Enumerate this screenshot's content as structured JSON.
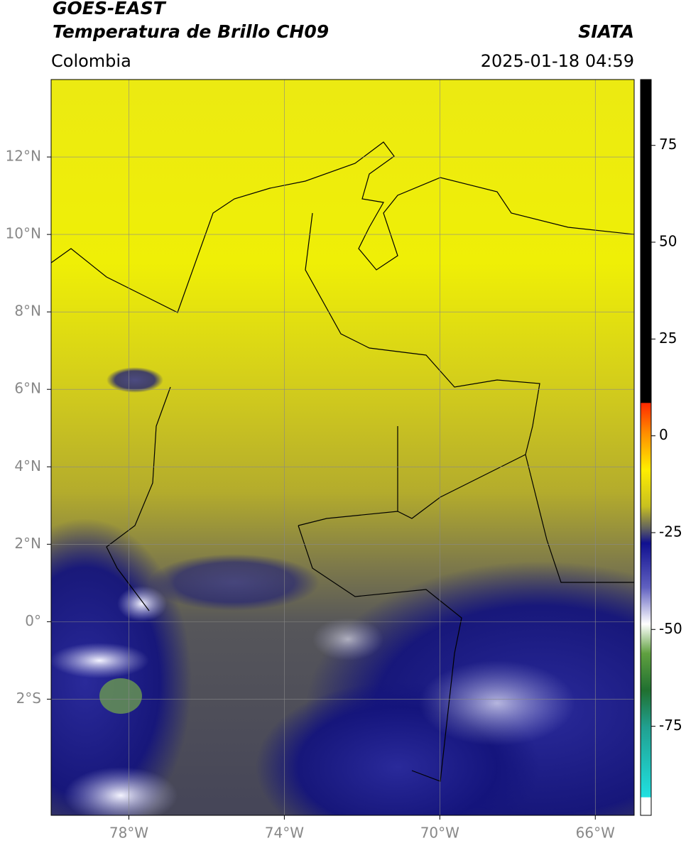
{
  "header": {
    "title": "GOES-EAST",
    "subtitle": "Temperatura de Brillo CH09",
    "source": "SIATA",
    "region": "Colombia",
    "datetime": "2025-01-18 04:59"
  },
  "map": {
    "xlim": [
      -80,
      -65
    ],
    "ylim": [
      -5,
      14
    ],
    "xticks": [
      {
        "value": -78,
        "label": "78°W"
      },
      {
        "value": -74,
        "label": "74°W"
      },
      {
        "value": -70,
        "label": "70°W"
      },
      {
        "value": -66,
        "label": "66°W"
      }
    ],
    "yticks": [
      {
        "value": 12,
        "label": "12°N"
      },
      {
        "value": 10,
        "label": "10°N"
      },
      {
        "value": 8,
        "label": "8°N"
      },
      {
        "value": 6,
        "label": "6°N"
      },
      {
        "value": 4,
        "label": "4°N"
      },
      {
        "value": 2,
        "label": "2°N"
      },
      {
        "value": 0,
        "label": "0°"
      },
      {
        "value": -2,
        "label": "2°S"
      }
    ],
    "grid": true
  },
  "colorbar": {
    "lim": [
      -98,
      92
    ],
    "ticks": [
      75,
      50,
      25,
      0,
      -25,
      -50,
      -75
    ]
  }
}
